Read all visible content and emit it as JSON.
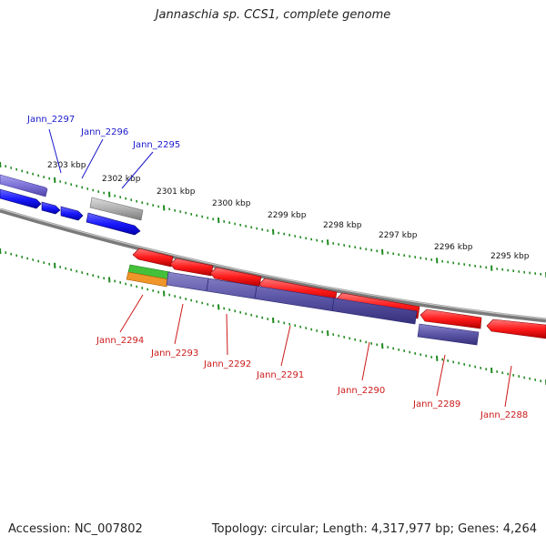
{
  "title": "Jannaschia sp. CCS1, complete genome",
  "accession": "Accession: NC_007802",
  "summary": "Topology: circular; Length: 4,317,977 bp; Genes: 4,264",
  "scale_labels": [
    "2303 kbp",
    "2302 kbp",
    "2301 kbp",
    "2300 kbp",
    "2299 kbp",
    "2298 kbp",
    "2297 kbp",
    "2296 kbp",
    "2295 kbp"
  ],
  "genes_top": [
    "Jann_2297",
    "Jann_2296",
    "Jann_2295"
  ],
  "genes_bottom": [
    "Jann_2294",
    "Jann_2293",
    "Jann_2292",
    "Jann_2291",
    "Jann_2290",
    "Jann_2289",
    "Jann_2288"
  ],
  "colors": {
    "forward_cds": "#1a1aff",
    "reverse_cds": "#ff1a1a",
    "cog_band": "#5b55a6",
    "grey_feature": "#b0b0b0",
    "backbone": "#888888",
    "tick": "#1f8a1f",
    "label_top": "#1a1acc",
    "label_bottom": "#cc1a1a"
  }
}
